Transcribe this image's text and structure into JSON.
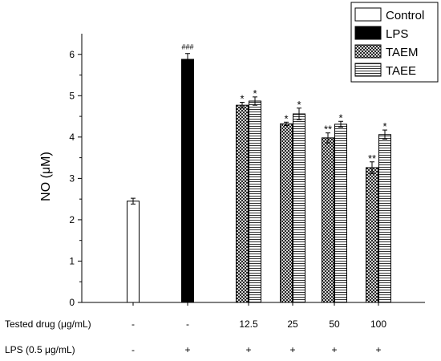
{
  "chart_data": {
    "type": "bar",
    "ylabel": "NO (μM)",
    "ylim": [
      0,
      6.5
    ],
    "yticks": [
      0,
      1,
      2,
      3,
      4,
      5,
      6
    ],
    "legend_position": "top-right",
    "series": [
      {
        "name": "Control",
        "pattern": "white",
        "values": [
          2.45,
          null,
          null,
          null,
          null,
          null
        ],
        "errors": [
          0.07,
          null,
          null,
          null,
          null,
          null
        ],
        "marks": [
          "",
          "",
          "",
          "",
          "",
          ""
        ]
      },
      {
        "name": "LPS",
        "pattern": "black",
        "values": [
          null,
          5.88,
          null,
          null,
          null,
          null
        ],
        "errors": [
          null,
          0.14,
          null,
          null,
          null,
          null
        ],
        "marks": [
          "",
          "###",
          "",
          "",
          "",
          ""
        ]
      },
      {
        "name": "TAEM",
        "pattern": "crosshatch",
        "values": [
          null,
          null,
          4.77,
          4.32,
          3.98,
          3.26
        ],
        "errors": [
          null,
          null,
          0.07,
          0.04,
          0.12,
          0.14
        ],
        "marks": [
          "",
          "",
          "*",
          "*",
          "**",
          "**"
        ]
      },
      {
        "name": "TAEE",
        "pattern": "horizontal",
        "values": [
          null,
          null,
          4.87,
          4.56,
          4.31,
          4.06
        ],
        "errors": [
          null,
          null,
          0.1,
          0.14,
          0.07,
          0.11
        ],
        "marks": [
          "",
          "",
          "*",
          "*",
          "*",
          "*"
        ]
      }
    ],
    "rows": [
      {
        "label": "Tested drug (μg/mL)",
        "values": [
          "-",
          "-",
          "12.5",
          "25",
          "50",
          "100"
        ]
      },
      {
        "label": "LPS (0.5 μg/mL)",
        "values": [
          "-",
          "+",
          "+",
          "+",
          "+",
          "+"
        ]
      }
    ]
  }
}
